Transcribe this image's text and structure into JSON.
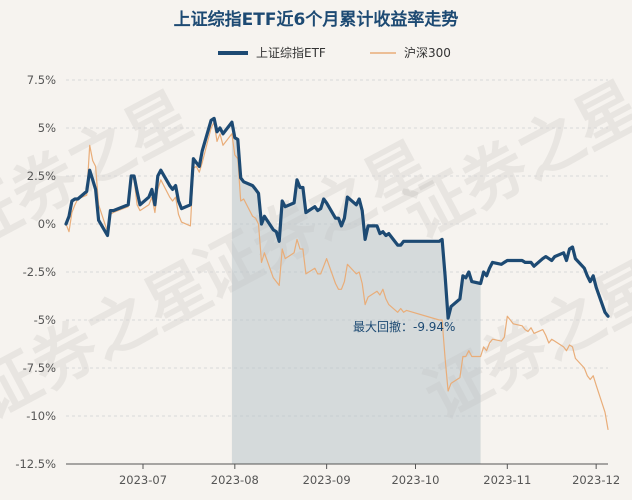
{
  "colors": {
    "etf": "#1d4a73",
    "index": "#e9ad79",
    "drawdown_fill": "#b9c4cb",
    "grid": "#d8d8d8",
    "background": "#f6f3ef"
  },
  "watermark_text": "证券之星",
  "chart_data": {
    "type": "line",
    "title": "上证综指ETF近6个月累计收益率走势",
    "xlabel": "",
    "ylabel": "",
    "ylim": [
      -12.5,
      7.5
    ],
    "yticks": [
      7.5,
      5,
      2.5,
      0,
      -2.5,
      -5,
      -7.5,
      -10,
      -12.5
    ],
    "ytick_labels": [
      "7.5%",
      "5%",
      "2.5%",
      "0%",
      "-2.5%",
      "-5%",
      "-7.5%",
      "-10%",
      "-12.5%"
    ],
    "xlim": [
      "2023-06-05",
      "2023-12-05"
    ],
    "xtick_dates": [
      "2023-07-01",
      "2023-08-01",
      "2023-09-01",
      "2023-10-01",
      "2023-11-01",
      "2023-12-01"
    ],
    "xtick_labels": [
      "2023-07",
      "2023-08",
      "2023-09",
      "2023-10",
      "2023-11",
      "2023-12"
    ],
    "grid": true,
    "legend_position": "top-center",
    "annotation": {
      "text": "最大回撤：-9.94%",
      "from": "2023-07-31",
      "to": "2023-10-23"
    },
    "series": [
      {
        "name": "上证综指ETF",
        "x": [
          "2023-06-05",
          "2023-06-06",
          "2023-06-07",
          "2023-06-08",
          "2023-06-09",
          "2023-06-12",
          "2023-06-13",
          "2023-06-14",
          "2023-06-15",
          "2023-06-16",
          "2023-06-19",
          "2023-06-20",
          "2023-06-21",
          "2023-06-26",
          "2023-06-27",
          "2023-06-28",
          "2023-06-29",
          "2023-06-30",
          "2023-07-03",
          "2023-07-04",
          "2023-07-05",
          "2023-07-06",
          "2023-07-07",
          "2023-07-10",
          "2023-07-11",
          "2023-07-12",
          "2023-07-13",
          "2023-07-14",
          "2023-07-17",
          "2023-07-18",
          "2023-07-19",
          "2023-07-20",
          "2023-07-21",
          "2023-07-24",
          "2023-07-25",
          "2023-07-26",
          "2023-07-27",
          "2023-07-28",
          "2023-07-31",
          "2023-08-01",
          "2023-08-02",
          "2023-08-03",
          "2023-08-04",
          "2023-08-07",
          "2023-08-08",
          "2023-08-09",
          "2023-08-10",
          "2023-08-11",
          "2023-08-14",
          "2023-08-15",
          "2023-08-16",
          "2023-08-17",
          "2023-08-18",
          "2023-08-21",
          "2023-08-22",
          "2023-08-23",
          "2023-08-24",
          "2023-08-25",
          "2023-08-28",
          "2023-08-29",
          "2023-08-30",
          "2023-08-31",
          "2023-09-01",
          "2023-09-04",
          "2023-09-05",
          "2023-09-06",
          "2023-09-07",
          "2023-09-08",
          "2023-09-11",
          "2023-09-12",
          "2023-09-13",
          "2023-09-14",
          "2023-09-15",
          "2023-09-18",
          "2023-09-19",
          "2023-09-20",
          "2023-09-21",
          "2023-09-22",
          "2023-09-25",
          "2023-09-26",
          "2023-09-27",
          "2023-09-28",
          "2023-10-09",
          "2023-10-10",
          "2023-10-11",
          "2023-10-12",
          "2023-10-13",
          "2023-10-16",
          "2023-10-17",
          "2023-10-18",
          "2023-10-19",
          "2023-10-20",
          "2023-10-23",
          "2023-10-24",
          "2023-10-25",
          "2023-10-26",
          "2023-10-27",
          "2023-10-30",
          "2023-10-31",
          "2023-11-01",
          "2023-11-02",
          "2023-11-03",
          "2023-11-06",
          "2023-11-07",
          "2023-11-08",
          "2023-11-09",
          "2023-11-10",
          "2023-11-13",
          "2023-11-14",
          "2023-11-15",
          "2023-11-16",
          "2023-11-17",
          "2023-11-20",
          "2023-11-21",
          "2023-11-22",
          "2023-11-23",
          "2023-11-24",
          "2023-11-27",
          "2023-11-28",
          "2023-11-29",
          "2023-11-30",
          "2023-12-01",
          "2023-12-04",
          "2023-12-05"
        ],
        "values": [
          0.0,
          0.4,
          1.2,
          1.3,
          1.3,
          1.7,
          2.8,
          2.3,
          1.8,
          0.2,
          -0.6,
          0.7,
          0.7,
          1.0,
          2.5,
          2.5,
          1.7,
          1.0,
          1.4,
          1.8,
          1.0,
          2.5,
          2.8,
          2.0,
          1.8,
          2.0,
          1.2,
          0.8,
          1.0,
          3.4,
          3.2,
          3.0,
          3.8,
          5.4,
          5.5,
          4.8,
          5.0,
          4.7,
          5.3,
          4.5,
          4.4,
          2.4,
          2.2,
          2.0,
          1.8,
          1.6,
          0.0,
          0.4,
          -0.3,
          -0.4,
          -0.9,
          1.2,
          0.9,
          1.1,
          2.3,
          1.9,
          1.9,
          0.6,
          0.9,
          0.7,
          0.8,
          1.3,
          1.1,
          0.3,
          0.3,
          -0.1,
          0.3,
          1.4,
          1.0,
          1.3,
          0.7,
          -0.8,
          -0.1,
          -0.1,
          -0.5,
          -0.4,
          -0.6,
          -0.5,
          -1.1,
          -1.1,
          -0.9,
          -0.9,
          -0.9,
          -0.8,
          -2.7,
          -4.9,
          -4.3,
          -3.9,
          -2.7,
          -2.8,
          -2.5,
          -3.0,
          -3.1,
          -2.5,
          -2.7,
          -2.3,
          -2.0,
          -2.1,
          -2.0,
          -1.9,
          -1.9,
          -1.9,
          -1.9,
          -2.0,
          -2.0,
          -2.0,
          -2.2,
          -1.8,
          -1.7,
          -1.8,
          -1.9,
          -1.7,
          -1.5,
          -1.9,
          -1.3,
          -1.2,
          -1.8,
          -2.3,
          -2.7,
          -3.0,
          -2.7,
          -3.3,
          -4.6,
          -4.8
        ]
      },
      {
        "name": "沪深300",
        "x": [
          "2023-06-05",
          "2023-06-06",
          "2023-06-07",
          "2023-06-08",
          "2023-06-09",
          "2023-06-12",
          "2023-06-13",
          "2023-06-14",
          "2023-06-15",
          "2023-06-16",
          "2023-06-19",
          "2023-06-20",
          "2023-06-21",
          "2023-06-26",
          "2023-06-27",
          "2023-06-28",
          "2023-06-29",
          "2023-06-30",
          "2023-07-03",
          "2023-07-04",
          "2023-07-05",
          "2023-07-06",
          "2023-07-07",
          "2023-07-10",
          "2023-07-11",
          "2023-07-12",
          "2023-07-13",
          "2023-07-14",
          "2023-07-17",
          "2023-07-18",
          "2023-07-19",
          "2023-07-20",
          "2023-07-21",
          "2023-07-24",
          "2023-07-25",
          "2023-07-26",
          "2023-07-27",
          "2023-07-28",
          "2023-07-31",
          "2023-08-01",
          "2023-08-02",
          "2023-08-03",
          "2023-08-04",
          "2023-08-07",
          "2023-08-08",
          "2023-08-09",
          "2023-08-10",
          "2023-08-11",
          "2023-08-14",
          "2023-08-15",
          "2023-08-16",
          "2023-08-17",
          "2023-08-18",
          "2023-08-21",
          "2023-08-22",
          "2023-08-23",
          "2023-08-24",
          "2023-08-25",
          "2023-08-28",
          "2023-08-29",
          "2023-08-30",
          "2023-08-31",
          "2023-09-01",
          "2023-09-04",
          "2023-09-05",
          "2023-09-06",
          "2023-09-07",
          "2023-09-08",
          "2023-09-11",
          "2023-09-12",
          "2023-09-13",
          "2023-09-14",
          "2023-09-15",
          "2023-09-18",
          "2023-09-19",
          "2023-09-20",
          "2023-09-21",
          "2023-09-22",
          "2023-09-25",
          "2023-09-26",
          "2023-09-27",
          "2023-09-28",
          "2023-10-09",
          "2023-10-10",
          "2023-10-11",
          "2023-10-12",
          "2023-10-13",
          "2023-10-16",
          "2023-10-17",
          "2023-10-18",
          "2023-10-19",
          "2023-10-20",
          "2023-10-23",
          "2023-10-24",
          "2023-10-25",
          "2023-10-26",
          "2023-10-27",
          "2023-10-30",
          "2023-10-31",
          "2023-11-01",
          "2023-11-02",
          "2023-11-03",
          "2023-11-06",
          "2023-11-07",
          "2023-11-08",
          "2023-11-09",
          "2023-11-10",
          "2023-11-13",
          "2023-11-14",
          "2023-11-15",
          "2023-11-16",
          "2023-11-17",
          "2023-11-20",
          "2023-11-21",
          "2023-11-22",
          "2023-11-23",
          "2023-11-24",
          "2023-11-27",
          "2023-11-28",
          "2023-11-29",
          "2023-11-30",
          "2023-12-01",
          "2023-12-04",
          "2023-12-05"
        ],
        "values": [
          0.0,
          -0.4,
          0.6,
          1.0,
          1.3,
          1.5,
          4.1,
          3.3,
          3.0,
          1.0,
          -0.4,
          0.5,
          0.6,
          0.9,
          2.4,
          2.3,
          1.0,
          0.7,
          1.0,
          1.4,
          0.6,
          1.8,
          2.3,
          1.4,
          1.2,
          1.4,
          0.5,
          0.1,
          -0.1,
          2.9,
          3.0,
          2.7,
          3.2,
          5.0,
          5.3,
          4.3,
          4.7,
          4.1,
          4.7,
          3.6,
          3.4,
          1.2,
          1.3,
          0.4,
          0.3,
          0.0,
          -2.0,
          -1.5,
          -2.8,
          -3.0,
          -3.2,
          -1.3,
          -1.8,
          -1.5,
          -0.8,
          -1.3,
          -1.3,
          -2.6,
          -2.3,
          -2.6,
          -2.6,
          -2.2,
          -1.8,
          -3.1,
          -3.4,
          -3.4,
          -3.0,
          -2.1,
          -2.6,
          -2.5,
          -3.1,
          -4.2,
          -3.8,
          -3.5,
          -3.7,
          -3.4,
          -3.9,
          -4.2,
          -4.6,
          -4.4,
          -4.6,
          -4.5,
          -5.0,
          -5.0,
          -7.0,
          -8.7,
          -8.3,
          -8.0,
          -6.9,
          -6.9,
          -6.6,
          -6.9,
          -6.9,
          -6.4,
          -6.6,
          -6.2,
          -6.0,
          -6.1,
          -5.9,
          -4.8,
          -5.0,
          -5.2,
          -5.3,
          -5.5,
          -5.6,
          -5.4,
          -5.7,
          -5.5,
          -5.8,
          -6.2,
          -6.0,
          -6.1,
          -6.4,
          -6.6,
          -6.3,
          -6.4,
          -7.0,
          -7.5,
          -7.9,
          -8.1,
          -7.9,
          -8.4,
          -9.8,
          -10.7
        ]
      }
    ]
  }
}
